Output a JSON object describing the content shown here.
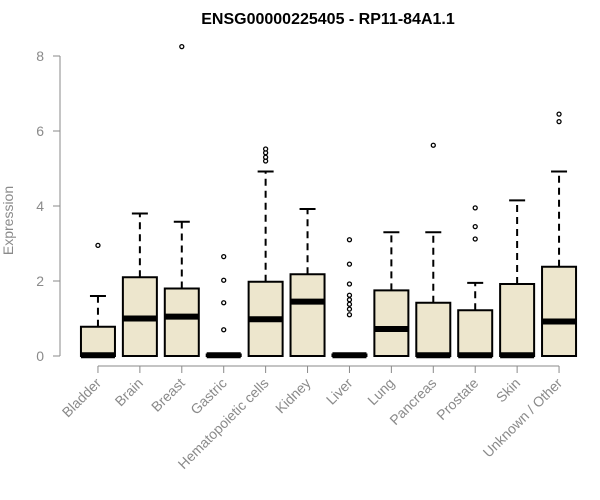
{
  "chart_data": {
    "type": "boxplot",
    "title": "ENSG00000225405 - RP11-84A1.1",
    "xlabel": "",
    "ylabel": "Expression",
    "ylim": [
      0,
      8.4
    ],
    "yticks": [
      0,
      2,
      4,
      6,
      8
    ],
    "categories": [
      "Bladder",
      "Brain",
      "Breast",
      "Gastric",
      "Hematopoietic cells",
      "Kidney",
      "Liver",
      "Lung",
      "Pancreas",
      "Prostate",
      "Skin",
      "Unknown / Other"
    ],
    "boxes": [
      {
        "min": 0,
        "q1": 0,
        "median": 0.02,
        "q3": 0.78,
        "max": 1.6,
        "outliers": [
          2.95
        ]
      },
      {
        "min": 0,
        "q1": 0,
        "median": 1.0,
        "q3": 2.1,
        "max": 3.8,
        "outliers": []
      },
      {
        "min": 0,
        "q1": 0,
        "median": 1.05,
        "q3": 1.8,
        "max": 3.58,
        "outliers": [
          8.25
        ]
      },
      {
        "min": 0,
        "q1": 0,
        "median": 0.02,
        "q3": 0.04,
        "max": 0.05,
        "outliers": [
          0.7,
          1.42,
          2.02,
          2.65
        ]
      },
      {
        "min": 0,
        "q1": 0,
        "median": 0.98,
        "q3": 1.98,
        "max": 4.92,
        "outliers": [
          5.2,
          5.3,
          5.42,
          5.52
        ]
      },
      {
        "min": 0,
        "q1": 0,
        "median": 1.45,
        "q3": 2.18,
        "max": 3.92,
        "outliers": []
      },
      {
        "min": 0,
        "q1": 0,
        "median": 0.02,
        "q3": 0.04,
        "max": 0.05,
        "outliers": [
          1.1,
          1.25,
          1.38,
          1.5,
          1.62,
          1.92,
          2.45,
          3.1
        ]
      },
      {
        "min": 0,
        "q1": 0,
        "median": 0.72,
        "q3": 1.75,
        "max": 3.3,
        "outliers": []
      },
      {
        "min": 0,
        "q1": 0,
        "median": 0.02,
        "q3": 1.42,
        "max": 3.3,
        "outliers": [
          5.62
        ]
      },
      {
        "min": 0,
        "q1": 0,
        "median": 0.02,
        "q3": 1.22,
        "max": 1.95,
        "outliers": [
          3.12,
          3.45,
          3.95
        ]
      },
      {
        "min": 0,
        "q1": 0,
        "median": 0.02,
        "q3": 1.92,
        "max": 4.15,
        "outliers": []
      },
      {
        "min": 0,
        "q1": 0,
        "median": 0.92,
        "q3": 2.38,
        "max": 4.92,
        "outliers": [
          6.25,
          6.45
        ]
      }
    ],
    "colors": {
      "box_fill": "#ede6cd",
      "box_stroke": "#000000",
      "median": "#000000",
      "axis": "#8a8a8a",
      "title": "#000000"
    },
    "grid": false,
    "legend": "none"
  }
}
